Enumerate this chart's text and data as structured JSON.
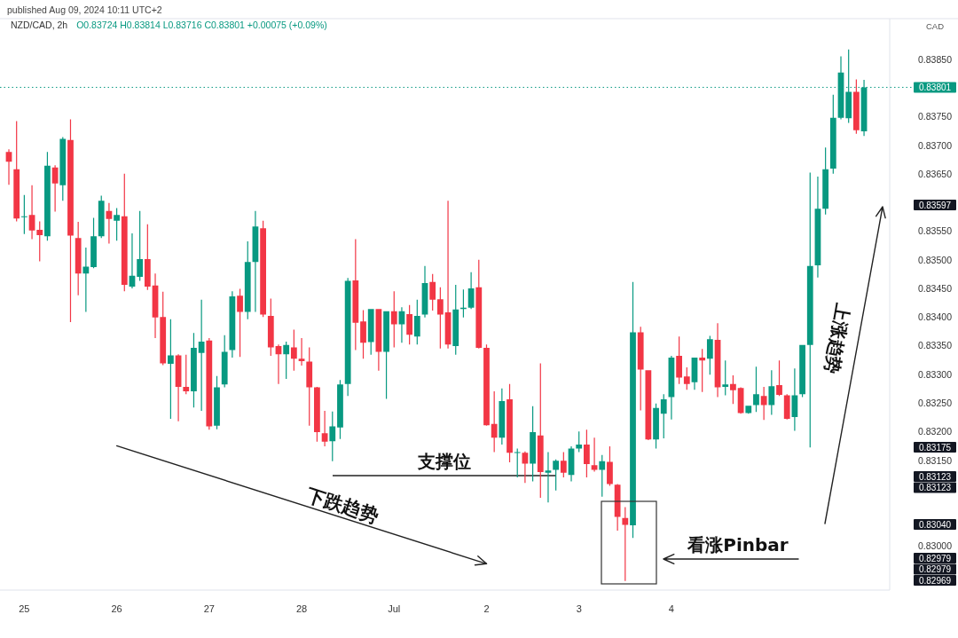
{
  "chart_data": {
    "type": "candlestick",
    "title": "NZD/CAD, 2h",
    "subtitle": "O0.83724 H0.83814 L0.83716 C0.83801 +0.00075 (+0.09%)",
    "ylabel": "CAD",
    "categories": [
      null,
      null,
      "25",
      null,
      null,
      null,
      null,
      null,
      null,
      null,
      null,
      null,
      null,
      null,
      "26",
      null,
      null,
      null,
      null,
      null,
      null,
      null,
      null,
      null,
      null,
      null,
      "27",
      null,
      null,
      null,
      null,
      null,
      null,
      null,
      null,
      null,
      null,
      null,
      "28",
      null,
      null,
      null,
      null,
      null,
      null,
      null,
      null,
      null,
      null,
      null,
      "Jul",
      null,
      null,
      null,
      null,
      null,
      null,
      null,
      null,
      null,
      null,
      null,
      "2",
      null,
      null,
      null,
      null,
      null,
      null,
      null,
      null,
      null,
      null,
      null,
      "3",
      null,
      null,
      null,
      null,
      null,
      null,
      null,
      null,
      null,
      null,
      null,
      "4",
      null,
      null,
      null,
      null,
      null,
      null,
      null,
      null,
      null,
      null,
      null,
      null,
      null,
      null,
      null,
      null,
      null,
      null,
      null,
      null,
      null,
      null,
      null,
      null,
      null
    ],
    "ohlc": [
      [
        0.83688,
        0.83693,
        0.83631,
        0.83671
      ],
      [
        0.83658,
        0.83742,
        0.83567,
        0.83572
      ],
      [
        0.83575,
        0.83613,
        0.83545,
        0.83576
      ],
      [
        0.83578,
        0.8363,
        0.83536,
        0.83551
      ],
      [
        0.83552,
        0.83567,
        0.83497,
        0.83543
      ],
      [
        0.83541,
        0.83688,
        0.83533,
        0.83664
      ],
      [
        0.83661,
        0.83665,
        0.83584,
        0.83633
      ],
      [
        0.8363,
        0.83714,
        0.83603,
        0.83711
      ],
      [
        0.83709,
        0.83745,
        0.83391,
        0.83542
      ],
      [
        0.83538,
        0.83566,
        0.83438,
        0.83476
      ],
      [
        0.83476,
        0.83521,
        0.83409,
        0.83488
      ],
      [
        0.83487,
        0.83573,
        0.83485,
        0.83541
      ],
      [
        0.83541,
        0.83612,
        0.83538,
        0.83603
      ],
      [
        0.83585,
        0.83599,
        0.83528,
        0.83571
      ],
      [
        0.83568,
        0.8359,
        0.83533,
        0.83578
      ],
      [
        0.83576,
        0.8365,
        0.83445,
        0.83456
      ],
      [
        0.83453,
        0.83546,
        0.8345,
        0.83472
      ],
      [
        0.8347,
        0.83585,
        0.83463,
        0.83501
      ],
      [
        0.83501,
        0.83562,
        0.83447,
        0.83453
      ],
      [
        0.83455,
        0.83476,
        0.83363,
        0.83399
      ],
      [
        0.834,
        0.83444,
        0.83316,
        0.83319
      ],
      [
        0.83318,
        0.83396,
        0.83222,
        0.83333
      ],
      [
        0.83333,
        0.83335,
        0.83218,
        0.83278
      ],
      [
        0.83278,
        0.83334,
        0.83265,
        0.8327
      ],
      [
        0.8327,
        0.83372,
        0.83242,
        0.83346
      ],
      [
        0.83337,
        0.8343,
        0.83236,
        0.83357
      ],
      [
        0.83359,
        0.83363,
        0.83203,
        0.83209
      ],
      [
        0.8321,
        0.83297,
        0.83204,
        0.83277
      ],
      [
        0.83282,
        0.83368,
        0.83277,
        0.83339
      ],
      [
        0.83342,
        0.83445,
        0.83329,
        0.83436
      ],
      [
        0.83437,
        0.83449,
        0.8333,
        0.83409
      ],
      [
        0.83409,
        0.83532,
        0.83396,
        0.83496
      ],
      [
        0.83496,
        0.83585,
        0.83409,
        0.83558
      ],
      [
        0.83555,
        0.83568,
        0.834,
        0.83404
      ],
      [
        0.83402,
        0.83432,
        0.83332,
        0.83347
      ],
      [
        0.83349,
        0.83352,
        0.83283,
        0.83335
      ],
      [
        0.83335,
        0.83357,
        0.83292,
        0.83351
      ],
      [
        0.83347,
        0.83378,
        0.83306,
        0.83327
      ],
      [
        0.83327,
        0.83363,
        0.83315,
        0.83323
      ],
      [
        0.83322,
        0.83347,
        0.8321,
        0.83277
      ],
      [
        0.83277,
        0.83278,
        0.83182,
        0.83199
      ],
      [
        0.83197,
        0.83236,
        0.83174,
        0.83182
      ],
      [
        0.83183,
        0.83235,
        0.83148,
        0.83209
      ],
      [
        0.83207,
        0.8329,
        0.83187,
        0.83282
      ],
      [
        0.83283,
        0.83468,
        0.83262,
        0.83463
      ],
      [
        0.83464,
        0.83536,
        0.83342,
        0.8339
      ],
      [
        0.83392,
        0.83412,
        0.83327,
        0.83355
      ],
      [
        0.83356,
        0.83414,
        0.83334,
        0.83414
      ],
      [
        0.83414,
        0.83414,
        0.83306,
        0.83339
      ],
      [
        0.83339,
        0.8341,
        0.83257,
        0.8341
      ],
      [
        0.8341,
        0.83445,
        0.83347,
        0.83387
      ],
      [
        0.83387,
        0.83417,
        0.83355,
        0.8341
      ],
      [
        0.83405,
        0.83421,
        0.83352,
        0.83369
      ],
      [
        0.83366,
        0.8343,
        0.83352,
        0.83402
      ],
      [
        0.83404,
        0.83489,
        0.83399,
        0.83459
      ],
      [
        0.83461,
        0.83475,
        0.83411,
        0.8343
      ],
      [
        0.83431,
        0.83452,
        0.83345,
        0.83404
      ],
      [
        0.83408,
        0.83603,
        0.83345,
        0.83352
      ],
      [
        0.83349,
        0.83456,
        0.83334,
        0.83413
      ],
      [
        0.83414,
        0.83448,
        0.83399,
        0.83416
      ],
      [
        0.83416,
        0.83478,
        0.83414,
        0.8345
      ],
      [
        0.83452,
        0.835,
        0.83345,
        0.83346
      ],
      [
        0.83346,
        0.83352,
        0.8321,
        0.83211
      ],
      [
        0.83213,
        0.8327,
        0.83164,
        0.83189
      ],
      [
        0.83189,
        0.83275,
        0.83177,
        0.83253
      ],
      [
        0.83256,
        0.83283,
        0.83146,
        0.83163
      ],
      [
        0.83163,
        0.8317,
        0.8312,
        0.83164
      ],
      [
        0.83163,
        0.83165,
        0.8311,
        0.83144
      ],
      [
        0.83144,
        0.83244,
        0.83113,
        0.83199
      ],
      [
        0.83193,
        0.83319,
        0.83084,
        0.83129
      ],
      [
        0.83128,
        0.83164,
        0.83076,
        0.83132
      ],
      [
        0.83133,
        0.83151,
        0.83097,
        0.83149
      ],
      [
        0.83149,
        0.83164,
        0.8312,
        0.83128
      ],
      [
        0.83124,
        0.83174,
        0.83113,
        0.8317
      ],
      [
        0.8317,
        0.832,
        0.83164,
        0.83177
      ],
      [
        0.83177,
        0.83203,
        0.8312,
        0.83143
      ],
      [
        0.83141,
        0.83189,
        0.8313,
        0.83133
      ],
      [
        0.83133,
        0.83159,
        0.83086,
        0.83148
      ],
      [
        0.83147,
        0.83174,
        0.83105,
        0.83108
      ],
      [
        0.83107,
        0.83108,
        0.83027,
        0.83051
      ],
      [
        0.83049,
        0.83068,
        0.82939,
        0.83037
      ],
      [
        0.83036,
        0.83461,
        0.83014,
        0.83373
      ],
      [
        0.83373,
        0.83383,
        0.83237,
        0.83308
      ],
      [
        0.83307,
        0.83307,
        0.83185,
        0.83186
      ],
      [
        0.83186,
        0.83249,
        0.8317,
        0.83241
      ],
      [
        0.83231,
        0.83265,
        0.83188,
        0.83256
      ],
      [
        0.8326,
        0.83332,
        0.83221,
        0.83329
      ],
      [
        0.83332,
        0.83366,
        0.83283,
        0.83294
      ],
      [
        0.83296,
        0.83312,
        0.83273,
        0.83283
      ],
      [
        0.83286,
        0.83329,
        0.83273,
        0.83329
      ],
      [
        0.83329,
        0.83344,
        0.83269,
        0.83324
      ],
      [
        0.83327,
        0.83367,
        0.83299,
        0.83361
      ],
      [
        0.8336,
        0.83389,
        0.8326,
        0.83277
      ],
      [
        0.83278,
        0.83324,
        0.83263,
        0.83282
      ],
      [
        0.83283,
        0.83298,
        0.83248,
        0.83272
      ],
      [
        0.83276,
        0.83277,
        0.83231,
        0.83232
      ],
      [
        0.83232,
        0.83245,
        0.83231,
        0.83245
      ],
      [
        0.83246,
        0.83313,
        0.83234,
        0.83265
      ],
      [
        0.83262,
        0.83278,
        0.8322,
        0.83246
      ],
      [
        0.83246,
        0.83307,
        0.83229,
        0.83279
      ],
      [
        0.83281,
        0.83324,
        0.83262,
        0.83264
      ],
      [
        0.83263,
        0.83265,
        0.83221,
        0.83222
      ],
      [
        0.83225,
        0.8331,
        0.83201,
        0.83263
      ],
      [
        0.83265,
        0.83351,
        0.8326,
        0.83351
      ],
      [
        0.83351,
        0.83652,
        0.83172,
        0.83489
      ],
      [
        0.8349,
        0.83645,
        0.83469,
        0.83589
      ],
      [
        0.83589,
        0.83696,
        0.83579,
        0.83658
      ],
      [
        0.83659,
        0.83788,
        0.8365,
        0.83748
      ],
      [
        0.83748,
        0.83855,
        0.83745,
        0.83827
      ],
      [
        0.83747,
        0.83867,
        0.83739,
        0.83793
      ],
      [
        0.83793,
        0.83815,
        0.8372,
        0.83726
      ],
      [
        0.83724,
        0.83814,
        0.83716,
        0.83801
      ]
    ],
    "colors": [
      "#f23645",
      "#f23645",
      "#089981",
      "#f23645",
      "#f23645",
      "#089981",
      "#f23645",
      "#089981",
      "#f23645",
      "#f23645",
      "#089981",
      "#089981",
      "#089981",
      "#f23645",
      "#089981",
      "#f23645",
      "#089981",
      "#089981",
      "#f23645",
      "#f23645",
      "#f23645",
      "#089981",
      "#f23645",
      "#f23645",
      "#089981",
      "#089981",
      "#f23645",
      "#089981",
      "#089981",
      "#089981",
      "#f23645",
      "#089981",
      "#089981",
      "#f23645",
      "#f23645",
      "#f23645",
      "#089981",
      "#f23645",
      "#f23645",
      "#f23645",
      "#f23645",
      "#f23645",
      "#089981",
      "#089981",
      "#089981",
      "#f23645",
      "#f23645",
      "#089981",
      "#f23645",
      "#089981",
      "#f23645",
      "#089981",
      "#f23645",
      "#089981",
      "#089981",
      "#f23645",
      "#f23645",
      "#f23645",
      "#089981",
      "#089981",
      "#089981",
      "#f23645",
      "#f23645",
      "#f23645",
      "#089981",
      "#f23645",
      "#089981",
      "#f23645",
      "#089981",
      "#f23645",
      "#089981",
      "#089981",
      "#f23645",
      "#089981",
      "#089981",
      "#f23645",
      "#f23645",
      "#089981",
      "#f23645",
      "#f23645",
      "#f23645",
      "#089981",
      "#f23645",
      "#f23645",
      "#089981",
      "#089981",
      "#089981",
      "#f23645",
      "#f23645",
      "#089981",
      "#f23645",
      "#089981",
      "#f23645",
      "#089981",
      "#f23645",
      "#f23645",
      "#089981",
      "#089981",
      "#f23645",
      "#089981",
      "#f23645",
      "#f23645",
      "#089981",
      "#089981",
      "#089981",
      "#089981",
      "#089981",
      "#089981",
      "#089981",
      "#089981",
      "#f23645",
      "#089981"
    ],
    "series": [
      {
        "type": "line",
        "name": "下跌趋势",
        "x": [
          "26",
          "2"
        ],
        "values": [
          0.83175,
          0.82969
        ],
        "color": "#222222"
      }
    ],
    "ylim": [
      0.82923,
      0.83921
    ],
    "yticks": [
      {
        "value": 0.8385,
        "label": "0.83850"
      },
      {
        "value": 0.8375,
        "label": "0.83750"
      },
      {
        "value": 0.837,
        "label": "0.83700"
      },
      {
        "value": 0.8365,
        "label": "0.83650"
      },
      {
        "value": 0.8355,
        "label": "0.83550"
      },
      {
        "value": 0.835,
        "label": "0.83500"
      },
      {
        "value": 0.8345,
        "label": "0.83450"
      },
      {
        "value": 0.834,
        "label": "0.83400"
      },
      {
        "value": 0.8335,
        "label": "0.83350"
      },
      {
        "value": 0.833,
        "label": "0.83300"
      },
      {
        "value": 0.8325,
        "label": "0.83250"
      },
      {
        "value": 0.832,
        "label": "0.83200"
      },
      {
        "value": 0.8315,
        "label": "0.83150"
      },
      {
        "value": 0.83,
        "label": "0.83000"
      }
    ],
    "ref_lines": [
      {
        "axis": "y",
        "value": 0.83801,
        "label": "0.83801",
        "color": "#089981",
        "line_style": "dotted"
      },
      {
        "axis": "y",
        "value": 0.83123,
        "label": "支撑位",
        "color": "#222222"
      }
    ],
    "annotations": [
      "published Aug 09, 2024 10:11 UTC+2",
      "上涨趋势",
      "看涨Pinbar",
      "0.83597",
      "0.83175",
      "0.83123",
      "0.83123",
      "0.83040",
      "0.82979",
      "0.82979",
      "0.82969"
    ]
  }
}
